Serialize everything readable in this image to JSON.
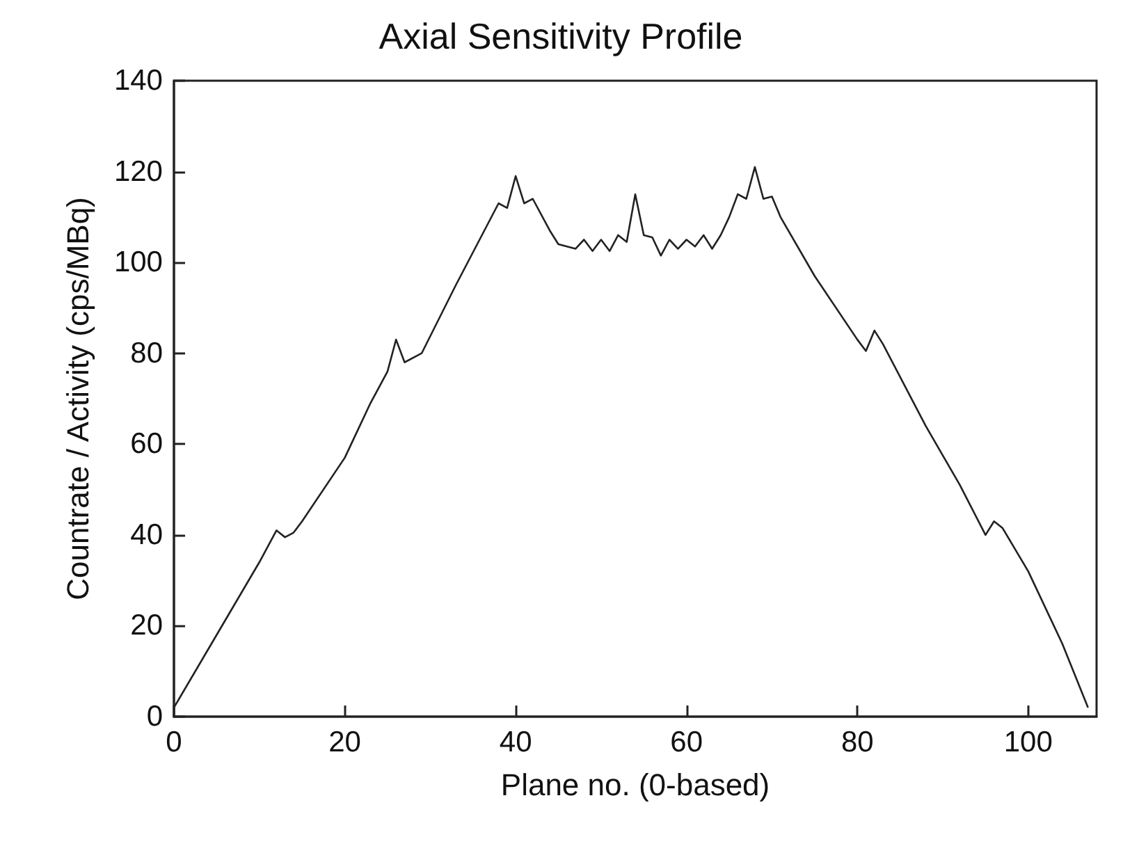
{
  "chart_data": {
    "type": "line",
    "title": "Axial Sensitivity Profile",
    "xlabel": "Plane no. (0-based)",
    "ylabel": "Countrate / Activity (cps/MBq)",
    "xlim": [
      0,
      108
    ],
    "xticks": [
      0,
      20,
      40,
      60,
      80,
      100
    ],
    "ylim": [
      0,
      140
    ],
    "yticks": [
      0,
      20,
      40,
      60,
      80,
      100,
      120,
      140
    ],
    "grid": false,
    "marker": "none",
    "line_style": "solid",
    "x": [
      0,
      5,
      10,
      12,
      13,
      14,
      15,
      20,
      23,
      25,
      26,
      27,
      29,
      33,
      38,
      39,
      40,
      41,
      42,
      44,
      45,
      46,
      47,
      48,
      49,
      50,
      51,
      52,
      53,
      54,
      55,
      56,
      57,
      58,
      59,
      60,
      61,
      62,
      63,
      64,
      65,
      66,
      67,
      68,
      69,
      70,
      71,
      75,
      80,
      81,
      82,
      83,
      88,
      92,
      95,
      96,
      97,
      100,
      104,
      107
    ],
    "series": [
      {
        "color": "#222222",
        "values": [
          2,
          18,
          34,
          41,
          39.5,
          40.5,
          43,
          57,
          69,
          76,
          83,
          78,
          80,
          95,
          113,
          112,
          119,
          113,
          114,
          107,
          104,
          103.5,
          103,
          105,
          102.5,
          105,
          102.5,
          106,
          104.5,
          115,
          106,
          105.5,
          101.5,
          105,
          103,
          105,
          103.5,
          106,
          103,
          106,
          110,
          115,
          114,
          121,
          114,
          114.5,
          110,
          97,
          83,
          80.5,
          85,
          82,
          64,
          51,
          40,
          43,
          41.5,
          32,
          16,
          2
        ]
      }
    ]
  }
}
